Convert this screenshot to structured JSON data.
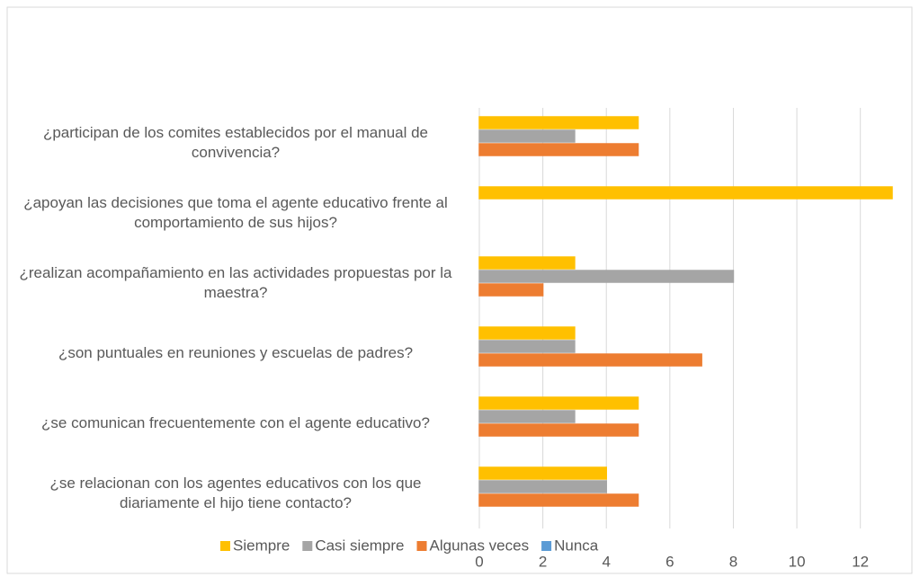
{
  "chart_data": {
    "type": "bar",
    "orientation": "horizontal",
    "categories": [
      "¿participan de los comites establecidos por el manual de convivencia?",
      "¿apoyan las decisiones que toma el agente educativo frente al comportamiento de sus hijos?",
      "¿realizan acompañamiento en las actividades propuestas por la maestra?",
      "¿son puntuales en reuniones y escuelas de padres?",
      "¿se comunican frecuentemente con el agente educativo?",
      "¿se relacionan con los agentes educativos con los que diariamente el hijo tiene contacto?"
    ],
    "series": [
      {
        "name": "Siempre",
        "color": "#FFC000",
        "values": [
          5,
          13,
          3,
          3,
          5,
          4
        ]
      },
      {
        "name": "Casi siempre",
        "color": "#A5A5A5",
        "values": [
          3,
          0,
          8,
          3,
          3,
          4
        ]
      },
      {
        "name": "Algunas veces",
        "color": "#ED7D31",
        "values": [
          5,
          0,
          2,
          7,
          5,
          5
        ]
      },
      {
        "name": "Nunca",
        "color": "#5B9BD5",
        "values": [
          0,
          0,
          0,
          0,
          0,
          0
        ]
      }
    ],
    "xlim": [
      0,
      13
    ],
    "xticks": [
      0,
      2,
      4,
      6,
      8,
      10,
      12
    ],
    "grid": true,
    "legend": "bottom"
  }
}
